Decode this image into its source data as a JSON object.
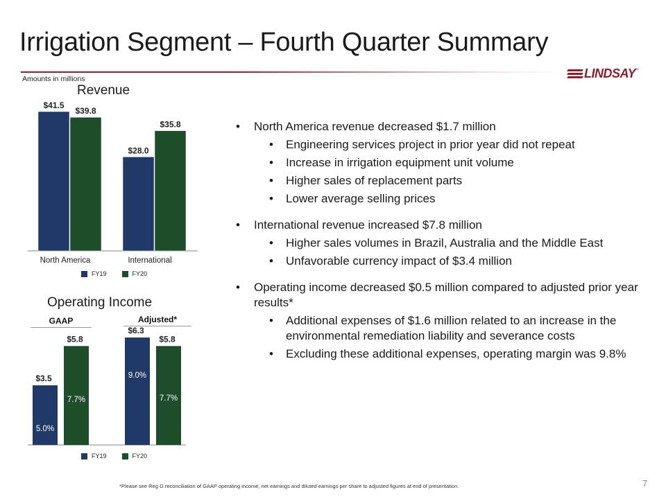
{
  "slide": {
    "title": "Irrigation Segment – Fourth Quarter Summary",
    "amounts_note": "Amounts in millions",
    "logo_text": "LINDSAY",
    "logo_tm": "™",
    "footnote": "*Please see Reg G reconciliation of GAAP operating income, net earnings and diluted earnings per share to adjusted figures at end of presentation.",
    "page_number": "7",
    "colors": {
      "fy19": "#1f3a66",
      "fy20": "#1d4d2b",
      "accent": "#8b1f2e"
    }
  },
  "bullets": [
    {
      "level": 1,
      "text": "North America revenue decreased $1.7 million"
    },
    {
      "level": 2,
      "text": "Engineering services project in prior year did not repeat"
    },
    {
      "level": 2,
      "text": "Increase in irrigation equipment unit volume"
    },
    {
      "level": 2,
      "text": "Higher sales of replacement parts"
    },
    {
      "level": 2,
      "text": "Lower average selling prices"
    },
    {
      "level": 1,
      "text": "International revenue increased $7.8 million",
      "gap_before": true
    },
    {
      "level": 2,
      "text": "Higher sales volumes in Brazil, Australia and the Middle East"
    },
    {
      "level": 2,
      "text": "Unfavorable currency impact of $3.4 million"
    },
    {
      "level": 1,
      "text": "Operating income decreased $0.5 million compared to adjusted prior year results*",
      "gap_before": true
    },
    {
      "level": 2,
      "text": "Additional expenses of $1.6 million related to an increase in the environmental remediation liability and severance costs"
    },
    {
      "level": 2,
      "text": "Excluding these additional expenses, operating margin was 9.8%"
    }
  ],
  "chart_data": [
    {
      "type": "bar",
      "title": "Revenue",
      "categories": [
        "North America",
        "International"
      ],
      "series": [
        {
          "name": "FY19",
          "values": [
            41.5,
            28.0
          ],
          "labels": [
            "$41.5",
            "$28.0"
          ]
        },
        {
          "name": "FY20",
          "values": [
            39.8,
            35.8
          ],
          "labels": [
            "$39.8",
            "$35.8"
          ]
        }
      ],
      "legend": [
        "FY19",
        "FY20"
      ],
      "legend_position": "bottom",
      "ylim": [
        0,
        41.5
      ]
    },
    {
      "type": "bar",
      "title": "Operating Income",
      "categories": [
        "GAAP",
        "Adjusted*"
      ],
      "series": [
        {
          "name": "FY19",
          "values": [
            3.5,
            6.3
          ],
          "labels": [
            "$3.5",
            "$6.3"
          ],
          "margins": [
            "5.0%",
            "9.0%"
          ]
        },
        {
          "name": "FY20",
          "values": [
            5.8,
            5.8
          ],
          "labels": [
            "$5.8",
            "$5.8"
          ],
          "margins": [
            "7.7%",
            "7.7%"
          ]
        }
      ],
      "legend": [
        "FY19",
        "FY20"
      ],
      "legend_position": "bottom",
      "ylim": [
        0,
        6.3
      ]
    }
  ]
}
